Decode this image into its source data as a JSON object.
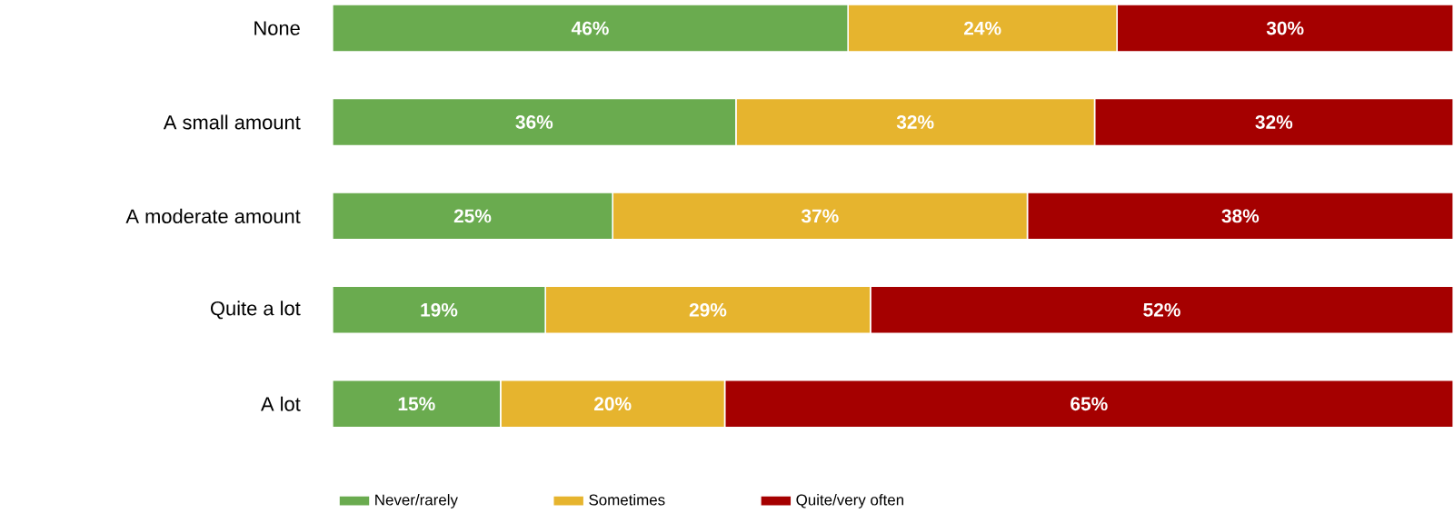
{
  "chart_data": {
    "type": "bar",
    "orientation": "horizontal",
    "stacked": true,
    "categories": [
      "None",
      "A small amount",
      "A moderate amount",
      "Quite a lot",
      "A lot"
    ],
    "series": [
      {
        "name": "Never/rarely",
        "color": "#6aab4f",
        "values": [
          46,
          36,
          25,
          19,
          15
        ],
        "value_labels": [
          "46%",
          "36%",
          "25%",
          "19%",
          "15%"
        ]
      },
      {
        "name": "Sometimes",
        "color": "#e6b42e",
        "values": [
          24,
          32,
          37,
          29,
          20
        ],
        "value_labels": [
          "24%",
          "32%",
          "37%",
          "29%",
          "20%"
        ]
      },
      {
        "name": "Quite/very often",
        "color": "#a50000",
        "values": [
          30,
          32,
          38,
          52,
          65
        ],
        "value_labels": [
          "30%",
          "32%",
          "38%",
          "52%",
          "65%"
        ]
      }
    ],
    "xlim": [
      0,
      100
    ],
    "tick_labels": "y",
    "legend": "bottom"
  }
}
